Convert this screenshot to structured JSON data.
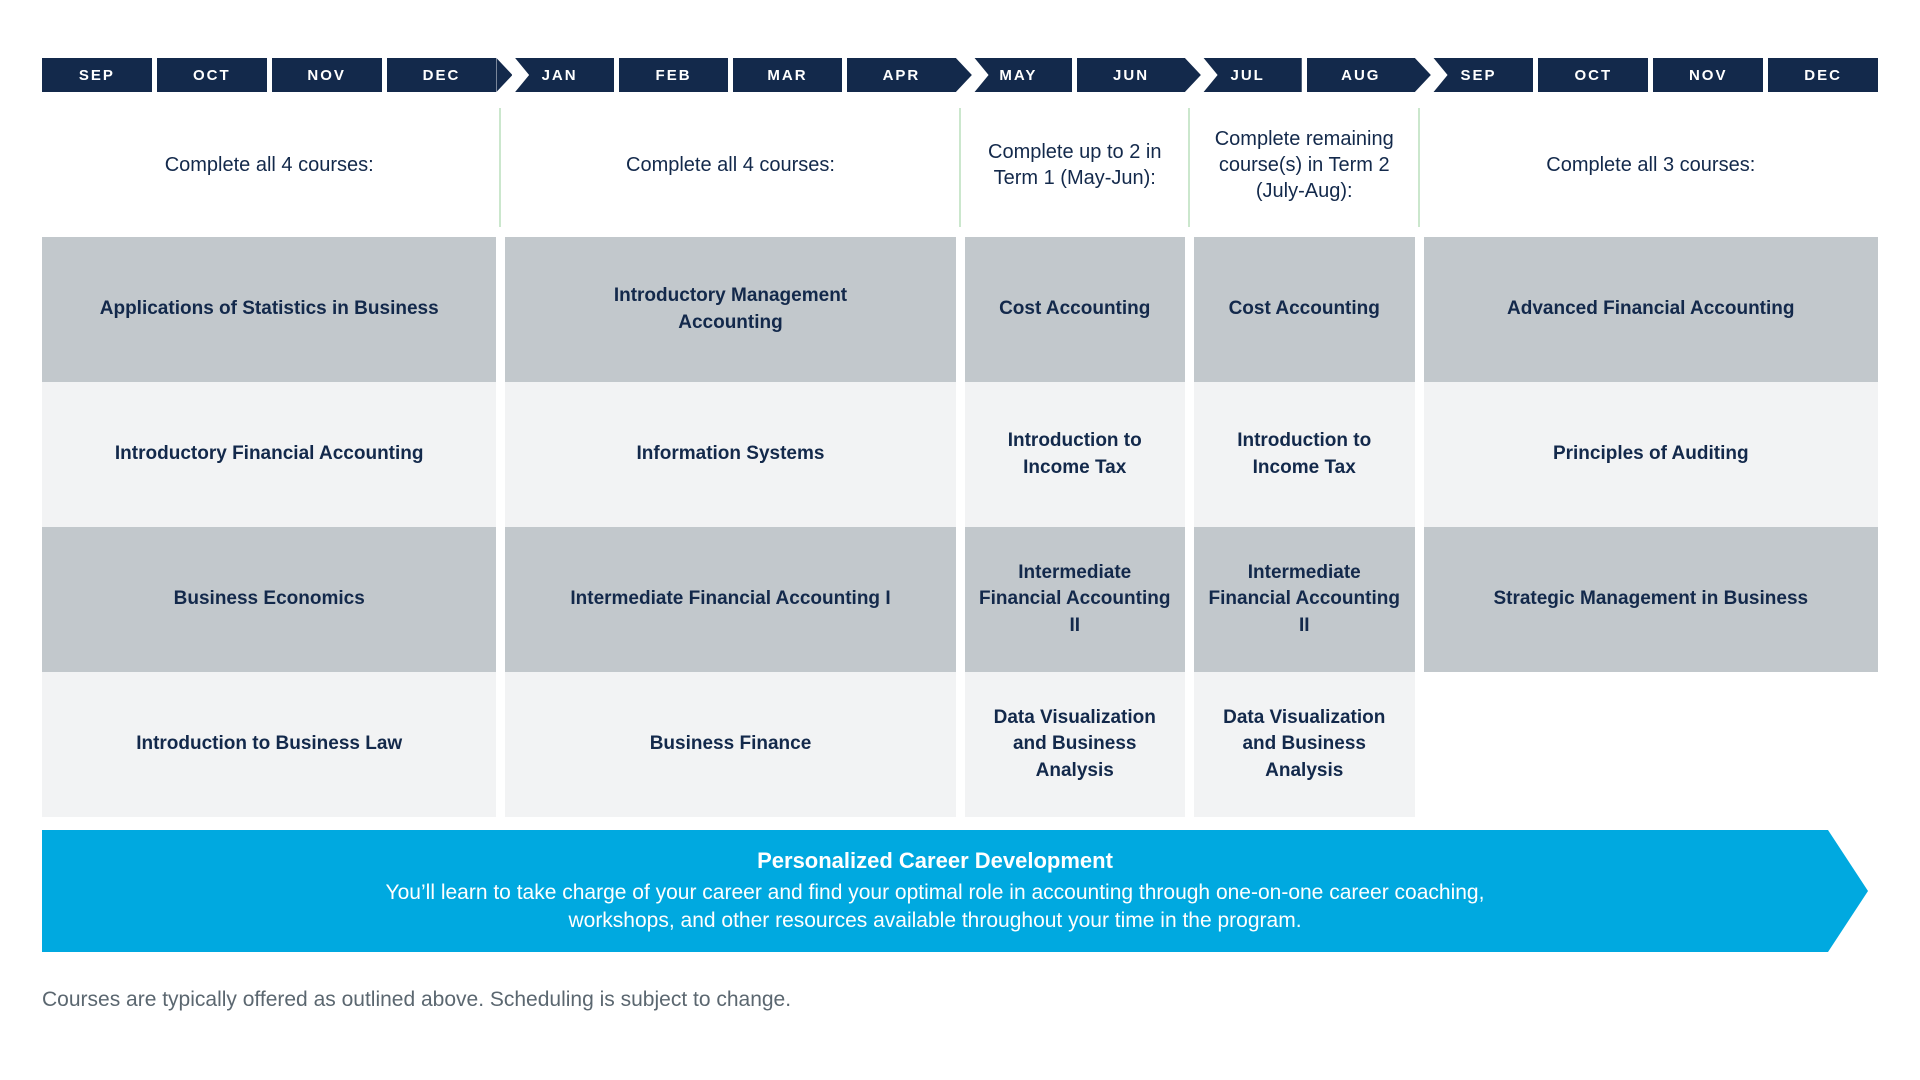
{
  "colors": {
    "navy": "#13294b",
    "gray_box": "#c2c8cc",
    "light_box": "#f2f3f4",
    "green_divider": "#cbe7cd",
    "cyan_banner": "#00a9e0",
    "footnote_gray": "#5b6770",
    "month_text": "#ffffff"
  },
  "timeline": {
    "groups": [
      {
        "months": [
          "SEP",
          "OCT",
          "NOV",
          "DEC"
        ],
        "header": "Complete all 4 courses:",
        "courses": [
          "Applications of Statistics in Business",
          "Introductory Financial Accounting",
          "Business Economics",
          "Introduction to Business Law"
        ]
      },
      {
        "months": [
          "JAN",
          "FEB",
          "MAR",
          "APR"
        ],
        "header": "Complete all 4 courses:",
        "courses": [
          "Introductory Management Accounting",
          "Information Systems",
          "Intermediate Financial Accounting I",
          "Business Finance"
        ]
      },
      {
        "months": [
          "MAY",
          "JUN"
        ],
        "header": "Complete up to 2 in Term 1 (May-Jun):",
        "courses": [
          "Cost Accounting",
          "Introduction to Income Tax",
          "Intermediate Financial Accounting II",
          "Data Visualization and Business Analysis"
        ]
      },
      {
        "months": [
          "JUL",
          "AUG"
        ],
        "header": "Complete remaining course(s) in Term 2 (July-Aug):",
        "courses": [
          "Cost Accounting",
          "Introduction to Income Tax",
          "Intermediate Financial Accounting II",
          "Data Visualization and Business Analysis"
        ]
      },
      {
        "months": [
          "SEP",
          "OCT",
          "NOV",
          "DEC"
        ],
        "header": "Complete all 3 courses:",
        "courses": [
          "Advanced Financial Accounting",
          "Principles of Auditing",
          "Strategic Management in Business"
        ]
      }
    ]
  },
  "banner": {
    "title": "Personalized Career Development",
    "line1": "You’ll learn to take charge of your career and find your optimal role in accounting through one-on-one career coaching,",
    "line2": "workshops, and other resources available throughout your time in the program."
  },
  "footnote": "Courses are typically offered as outlined above. Scheduling is subject to change."
}
